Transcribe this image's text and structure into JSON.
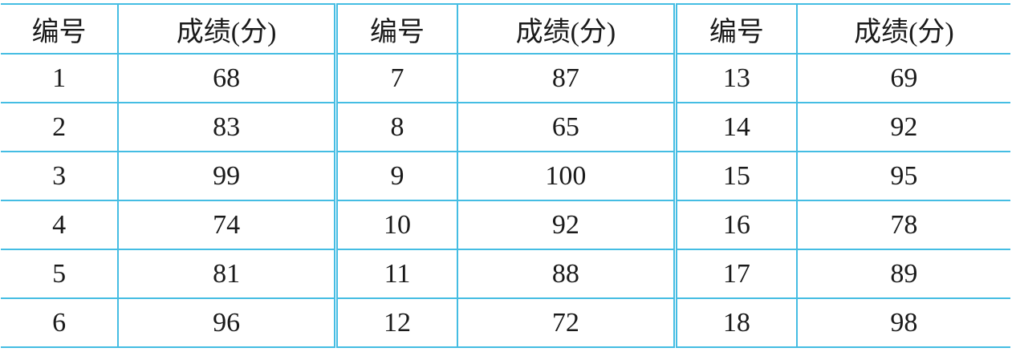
{
  "table": {
    "headers": [
      "编号",
      "成绩(分)",
      "编号",
      "成绩(分)",
      "编号",
      "成绩(分)"
    ],
    "rows": [
      [
        "1",
        "68",
        "7",
        "87",
        "13",
        "69"
      ],
      [
        "2",
        "83",
        "8",
        "65",
        "14",
        "92"
      ],
      [
        "3",
        "99",
        "9",
        "100",
        "15",
        "95"
      ],
      [
        "4",
        "74",
        "10",
        "92",
        "16",
        "78"
      ],
      [
        "5",
        "81",
        "11",
        "88",
        "17",
        "89"
      ],
      [
        "6",
        "96",
        "12",
        "72",
        "18",
        "98"
      ]
    ],
    "line_color": "#45bde3"
  }
}
